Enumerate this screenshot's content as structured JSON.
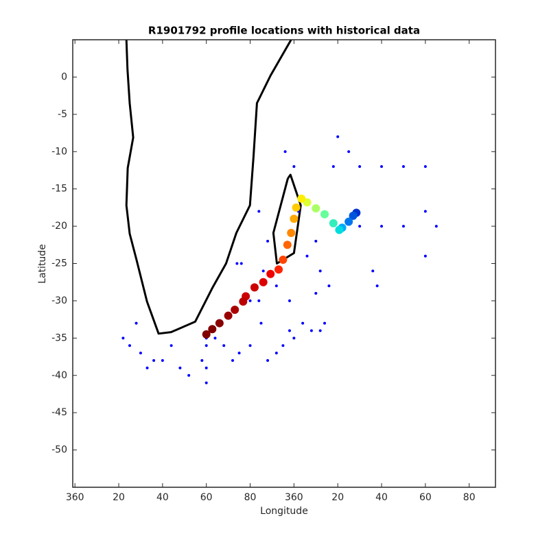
{
  "chart_data": {
    "type": "scatter",
    "title": "R1901792 profile locations with historical data",
    "xlabel": "Longitude",
    "ylabel": "Latitude",
    "xlim": [
      -1,
      192
    ],
    "ylim": [
      -55,
      5
    ],
    "xticks": [
      {
        "value": 0,
        "label": "360"
      },
      20,
      40,
      60,
      80,
      {
        "value": 100,
        "label": "360"
      },
      {
        "value": 120,
        "label": "20"
      },
      {
        "value": 140,
        "label": "40"
      },
      {
        "value": 160,
        "label": "60"
      },
      {
        "value": 180,
        "label": "80"
      }
    ],
    "yticks": [
      0,
      -5,
      -10,
      -15,
      -20,
      -25,
      -30,
      -35,
      -40,
      -45,
      -50
    ],
    "series": [
      {
        "mode": "line",
        "color": "#000000",
        "x": [
          23.5,
          24,
          25,
          26.6,
          24.1,
          23.5,
          25,
          28.2,
          32.9,
          38.2,
          43.9,
          54.9,
          62.7,
          69,
          73.7,
          79.9,
          81.5,
          83.1,
          89.3,
          98.7,
          null,
          97.2,
          90.6,
          92.2,
          100,
          103.1,
          98.4,
          97.2
        ],
        "values": [
          5,
          1,
          -3.5,
          -8.1,
          -12.2,
          -17.2,
          -21,
          -24.6,
          -30.1,
          -34.4,
          -34.2,
          -32.8,
          -28.3,
          -25,
          -20.9,
          -17.2,
          -10.8,
          -3.5,
          0.2,
          5,
          null,
          -13.6,
          -20.9,
          -25,
          -23.6,
          -17.2,
          -13.1,
          -13.6
        ]
      },
      {
        "mode": "points",
        "color": "#0000ff",
        "x": [
          22,
          25,
          28,
          30,
          33,
          36,
          40,
          44,
          48,
          52,
          58,
          60,
          60,
          60,
          60,
          64,
          68,
          72,
          75,
          80,
          85,
          88,
          92,
          95,
          98,
          100,
          104,
          108,
          112,
          114,
          110,
          106,
          102,
          110,
          112,
          116,
          118,
          120,
          125,
          130,
          140,
          150,
          160,
          160,
          160,
          165,
          150,
          140,
          130,
          136,
          138,
          100,
          96,
          84,
          88,
          86,
          92,
          98,
          84,
          80,
          76,
          74
        ],
        "values": [
          -35,
          -36,
          -33,
          -37,
          -39,
          -38,
          -38,
          -36,
          -39,
          -40,
          -38,
          -36,
          -39,
          -41,
          -35,
          -35,
          -36,
          -38,
          -37,
          -36,
          -33,
          -38,
          -37,
          -36,
          -34,
          -35,
          -33,
          -34,
          -34,
          -33,
          -29,
          -24,
          -18,
          -22,
          -26,
          -28,
          -12,
          -8,
          -10,
          -12,
          -12,
          -12,
          -12,
          -18,
          -24,
          -20,
          -20,
          -20,
          -20,
          -26,
          -28,
          -12,
          -10,
          -18,
          -22,
          -26,
          -28,
          -30,
          -30,
          -30,
          -25,
          -25
        ]
      },
      {
        "mode": "points",
        "x": [
          128.5,
          127,
          125,
          122,
          120.7,
          118,
          114,
          110,
          106,
          103.4,
          101,
          100,
          98.7,
          97,
          95,
          93,
          89.3,
          86,
          82,
          78,
          76.8,
          73,
          70,
          66,
          62.7,
          60
        ],
        "values": [
          -18.2,
          -18.6,
          -19.4,
          -20.2,
          -20.5,
          -19.6,
          -18.4,
          -17.6,
          -16.8,
          -16.3,
          -17.5,
          -19,
          -20.9,
          -22.5,
          -24.5,
          -25.8,
          -26.4,
          -27.5,
          -28.2,
          -29.4,
          -30.1,
          -31.2,
          -32,
          -33,
          -33.8,
          -34.5
        ],
        "colors": [
          "#0033cc",
          "#0055dd",
          "#0077ee",
          "#00aaff",
          "#00dddd",
          "#33eebb",
          "#66ff99",
          "#aaff66",
          "#ddff33",
          "#ffee00",
          "#ffcc00",
          "#ffaa00",
          "#ff8800",
          "#ff6600",
          "#ff4400",
          "#ff2200",
          "#ee0000",
          "#dd0000",
          "#cc0000",
          "#cc0000",
          "#bb0000",
          "#aa0000",
          "#990000",
          "#880000",
          "#800000",
          "#800000"
        ]
      }
    ]
  }
}
